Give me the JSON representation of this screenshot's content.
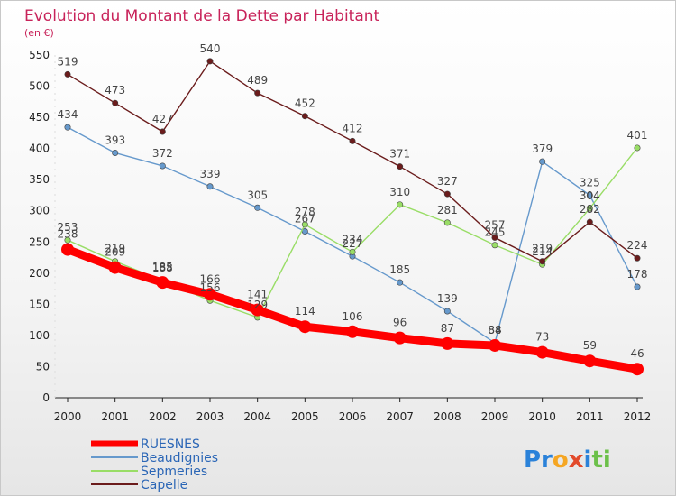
{
  "chart_data": {
    "type": "line",
    "title": "Evolution du Montant de la Dette par Habitant",
    "subtitle": "(en €)",
    "x": [
      "2000",
      "2001",
      "2002",
      "2003",
      "2004",
      "2005",
      "2006",
      "2007",
      "2008",
      "2009",
      "2010",
      "2011",
      "2012"
    ],
    "ylim": [
      0,
      550
    ],
    "yticks": [
      0,
      50,
      100,
      150,
      200,
      250,
      300,
      350,
      400,
      450,
      500,
      550
    ],
    "grid": false,
    "legend_position": "bottom-left",
    "series": [
      {
        "name": "RUESNES",
        "color": "#ff0000",
        "values": [
          238,
          209,
          185,
          166,
          141,
          114,
          106,
          96,
          87,
          84,
          73,
          59,
          46
        ]
      },
      {
        "name": "Beaudignies",
        "color": "#6699cc",
        "values": [
          434,
          393,
          372,
          339,
          305,
          267,
          227,
          185,
          139,
          88,
          379,
          325,
          178
        ]
      },
      {
        "name": "Sepmeries",
        "color": "#99dd66",
        "values": [
          253,
          219,
          188,
          156,
          129,
          278,
          234,
          310,
          281,
          245,
          214,
          304,
          401
        ]
      },
      {
        "name": "Capelle",
        "color": "#6b1c1c",
        "values": [
          519,
          473,
          427,
          540,
          489,
          452,
          412,
          371,
          327,
          257,
          219,
          282,
          224
        ]
      }
    ]
  },
  "brand": {
    "logo_parts": [
      "Pr",
      "o",
      "x",
      "i",
      "ti"
    ],
    "logo_colors": [
      "#2b82d9",
      "#f5a623",
      "#e24a2b",
      "#2b82d9",
      "#6cc04a"
    ]
  }
}
